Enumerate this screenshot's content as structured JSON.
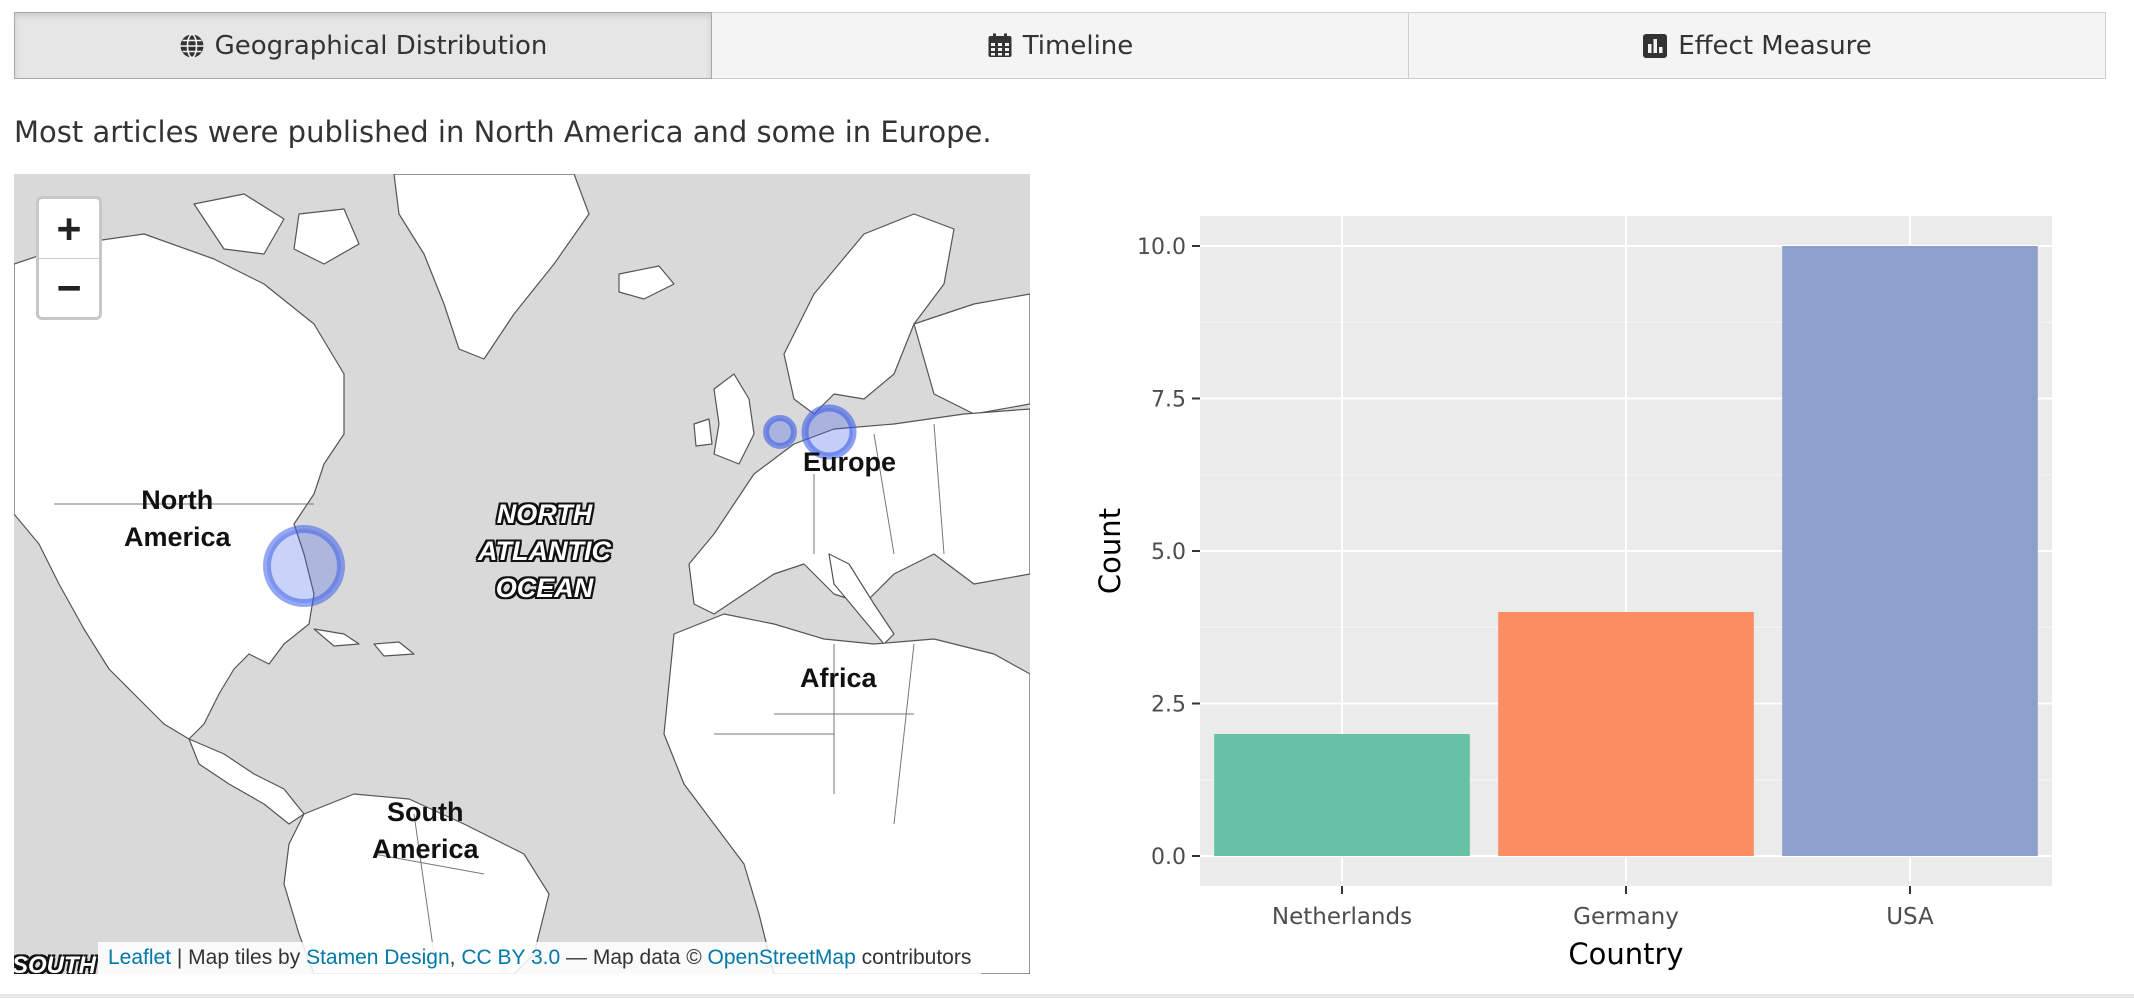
{
  "tabs": [
    {
      "label": "Geographical Distribution",
      "icon": "globe-icon",
      "active": true
    },
    {
      "label": "Timeline",
      "icon": "calendar-icon",
      "active": false
    },
    {
      "label": "Effect Measure",
      "icon": "bar-chart-icon",
      "active": false
    }
  ],
  "summary": "Most articles were published in North America and some in Europe.",
  "map": {
    "zoom_in": "+",
    "zoom_out": "−",
    "labels": {
      "north_america": [
        "North",
        "America"
      ],
      "europe": "Europe",
      "ocean": [
        "NORTH",
        "ATLANTIC",
        "OCEAN"
      ],
      "africa": "Africa",
      "south_america": [
        "South",
        "America"
      ],
      "south_edge": "SOUTH"
    },
    "attribution": {
      "leaflet": "Leaflet",
      "sep1": " | Map tiles by ",
      "stamen": "Stamen Design",
      "comma": ", ",
      "license": "CC BY 3.0",
      "sep2": " — Map data © ",
      "osm": "OpenStreetMap",
      "tail": " contributors"
    },
    "colors": {
      "water": "#d9d9d9",
      "land": "#ffffff",
      "marker": "#3c5ee8"
    }
  },
  "chart_data": {
    "type": "bar",
    "categories": [
      "Netherlands",
      "Germany",
      "USA"
    ],
    "values": [
      2,
      4,
      10
    ],
    "colors": [
      "#66c2a5",
      "#fc8d62",
      "#8da0cb"
    ],
    "xlabel": "Country",
    "ylabel": "Count",
    "ylim": [
      0,
      10
    ],
    "yticks": [
      0,
      2.5,
      5,
      7.5,
      10
    ],
    "ytick_labels": [
      "0.0",
      "2.5",
      "5.0",
      "7.5",
      "10.0"
    ],
    "grid": true,
    "panel_color": "#ebebeb"
  }
}
